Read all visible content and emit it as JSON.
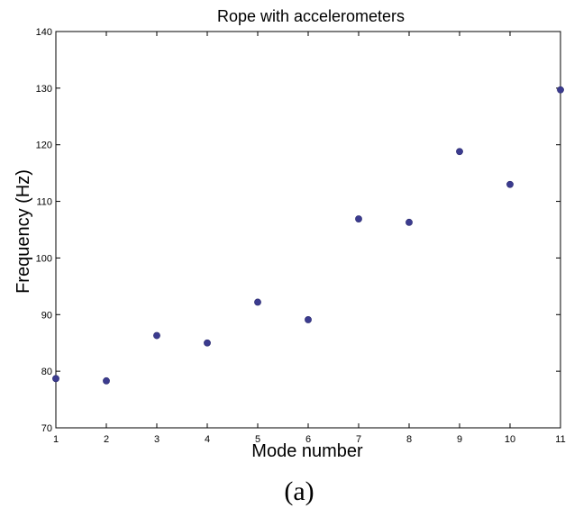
{
  "chart_data": {
    "type": "scatter",
    "title": "Rope with accelerometers",
    "xlabel": "Mode number",
    "ylabel": "Frequency (Hz)",
    "xlim": [
      1,
      11
    ],
    "ylim": [
      70,
      140
    ],
    "xticks": [
      1,
      2,
      3,
      4,
      5,
      6,
      7,
      8,
      9,
      10,
      11
    ],
    "yticks": [
      70,
      80,
      90,
      100,
      110,
      120,
      130,
      140
    ],
    "grid": false,
    "marker_color": "#3b3b8f",
    "points": [
      {
        "x": 1,
        "y": 78.7
      },
      {
        "x": 2,
        "y": 78.3
      },
      {
        "x": 3,
        "y": 86.3
      },
      {
        "x": 4,
        "y": 85.0
      },
      {
        "x": 5,
        "y": 92.2
      },
      {
        "x": 6,
        "y": 89.1
      },
      {
        "x": 7,
        "y": 106.9
      },
      {
        "x": 8,
        "y": 106.3
      },
      {
        "x": 9,
        "y": 118.8
      },
      {
        "x": 10,
        "y": 113.0
      },
      {
        "x": 11,
        "y": 129.7
      }
    ]
  },
  "caption": "(a)"
}
